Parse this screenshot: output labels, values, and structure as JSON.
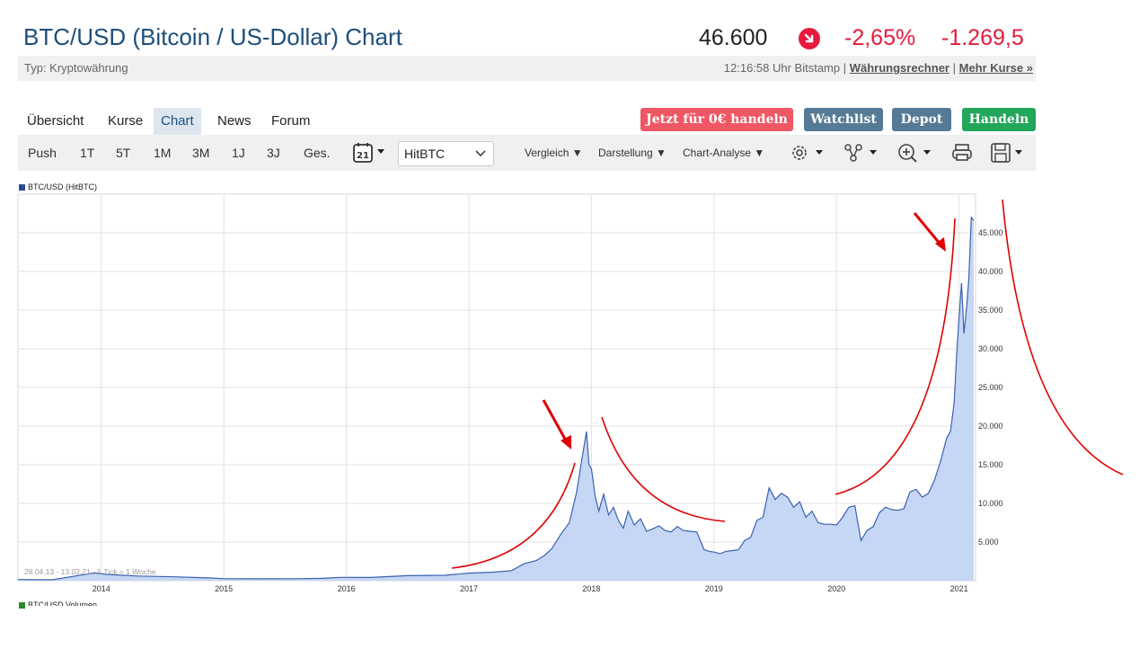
{
  "header": {
    "title": "BTC/USD (Bitcoin / US-Dollar) Chart",
    "price": "46.600",
    "change_pct": "-2,65%",
    "change_abs": "-1.269,5",
    "typ": "Typ: Kryptowährung",
    "timestamp_source": "12:16:58 Uhr Bitstamp |",
    "link_rechner": "Währungsrechner",
    "sep": "|",
    "link_kurse": "Mehr Kurse »"
  },
  "tabs": [
    "Übersicht",
    "Kurse",
    "Chart",
    "News",
    "Forum"
  ],
  "buttons": {
    "trade_free": "Jetzt für 0€ handeln",
    "watchlist": "Watchlist",
    "depot": "Depot",
    "handeln": "Handeln"
  },
  "toolbar": {
    "ranges": [
      "Push",
      "1T",
      "5T",
      "1M",
      "3M",
      "1J",
      "3J",
      "Ges."
    ],
    "calendar_day": "21",
    "source": "HitBTC",
    "vergleich": "Vergleich ▼",
    "darstellung": "Darstellung ▼",
    "chart_analyse": "Chart-Analyse ▼"
  },
  "chart_data": {
    "type": "area",
    "legend": "BTC/USD (HitBTC)",
    "footnote": "28.04.13 - 13.02.21 - 1 Tick = 1 Woche",
    "volume_legend": "BTC/USD Volumen",
    "x_ticks": [
      "2014",
      "2015",
      "2016",
      "2017",
      "2018",
      "2019",
      "2020",
      "2021"
    ],
    "y_ticks": [
      "5.000",
      "10.000",
      "15.000",
      "20.000",
      "25.000",
      "30.000",
      "35.000",
      "40.000",
      "45.000"
    ],
    "ylim": [
      0,
      50000
    ],
    "xlim": [
      2013.32,
      2021.12
    ],
    "series": [
      {
        "x": [
          2013.32,
          2013.6,
          2013.9,
          2013.95,
          2014.05,
          2014.3,
          2014.6,
          2014.9,
          2015.0,
          2015.3,
          2015.6,
          2015.8,
          2015.95,
          2016.2,
          2016.5,
          2016.8,
          2017.0,
          2017.2,
          2017.35,
          2017.45,
          2017.55,
          2017.62,
          2017.68,
          2017.75,
          2017.82,
          2017.88,
          2017.93,
          2017.96,
          2017.98,
          2018.0,
          2018.03,
          2018.06,
          2018.1,
          2018.14,
          2018.18,
          2018.22,
          2018.26,
          2018.3,
          2018.35,
          2018.4,
          2018.45,
          2018.5,
          2018.55,
          2018.6,
          2018.65,
          2018.7,
          2018.75,
          2018.8,
          2018.86,
          2018.92,
          2018.96,
          2019.0,
          2019.05,
          2019.1,
          2019.15,
          2019.2,
          2019.25,
          2019.3,
          2019.35,
          2019.4,
          2019.45,
          2019.5,
          2019.55,
          2019.6,
          2019.65,
          2019.7,
          2019.75,
          2019.8,
          2019.85,
          2019.9,
          2019.95,
          2020.0,
          2020.05,
          2020.1,
          2020.15,
          2020.2,
          2020.25,
          2020.3,
          2020.35,
          2020.4,
          2020.45,
          2020.5,
          2020.55,
          2020.6,
          2020.65,
          2020.7,
          2020.75,
          2020.8,
          2020.85,
          2020.9,
          2020.93,
          2020.96,
          2020.98,
          2021.0,
          2021.02,
          2021.04,
          2021.06,
          2021.08,
          2021.1,
          2021.12
        ],
        "y": [
          150,
          120,
          900,
          1000,
          800,
          600,
          500,
          350,
          260,
          240,
          260,
          300,
          430,
          420,
          650,
          700,
          980,
          1100,
          1300,
          2200,
          2600,
          3300,
          4200,
          6000,
          7500,
          11500,
          16500,
          19300,
          15000,
          14500,
          11000,
          9000,
          11200,
          8500,
          9500,
          7800,
          6800,
          9000,
          7200,
          8000,
          6400,
          6700,
          7100,
          6500,
          6300,
          7000,
          6500,
          6400,
          6300,
          4000,
          3800,
          3700,
          3500,
          3800,
          3900,
          4000,
          5200,
          5600,
          7800,
          8200,
          12000,
          10500,
          11300,
          10800,
          9500,
          10200,
          8200,
          9000,
          7500,
          7300,
          7300,
          7200,
          8200,
          9500,
          9700,
          5200,
          6500,
          7000,
          8800,
          9500,
          9200,
          9100,
          9300,
          11500,
          11800,
          10800,
          11300,
          13000,
          15500,
          18500,
          19300,
          23000,
          29000,
          34000,
          38500,
          32000,
          35000,
          39000,
          47000,
          46600
        ]
      }
    ]
  }
}
